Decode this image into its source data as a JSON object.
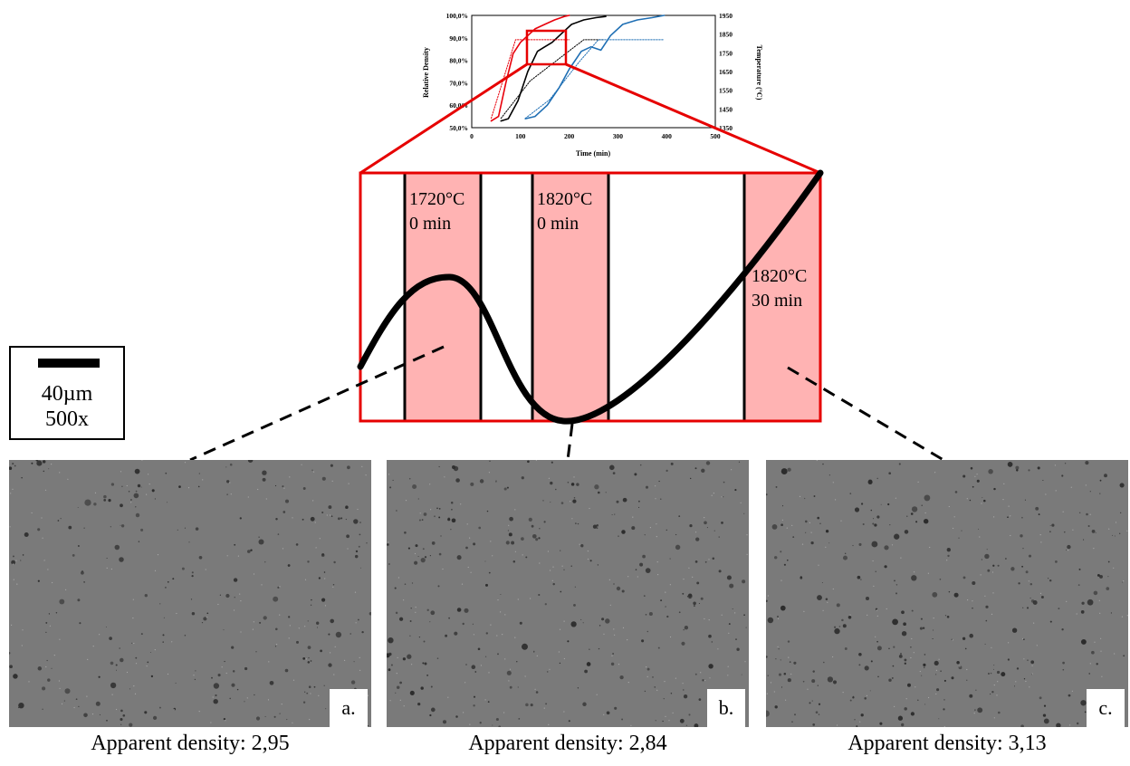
{
  "chart_data": {
    "type": "line",
    "xlabel": "Time (min)",
    "ylabel": "Relative Density",
    "y2label": "Temperature (°C)",
    "xlim": [
      0,
      500
    ],
    "ylim": [
      0.5,
      1.0
    ],
    "y2lim": [
      1350,
      1950
    ],
    "xticks": [
      "0",
      "100",
      "200",
      "300",
      "400",
      "500"
    ],
    "yticks": [
      "50,0%",
      "60,0%",
      "70,0%",
      "80,0%",
      "90,0%",
      "100,0%"
    ],
    "y2ticks": [
      "1350",
      "1450",
      "1550",
      "1650",
      "1750",
      "1850",
      "1950"
    ],
    "grid": false,
    "series": [
      {
        "color": "#e8000b",
        "style": "solid",
        "axis": "left",
        "x": [
          40,
          55,
          70,
          85,
          100,
          115,
          130,
          150,
          170,
          190,
          200
        ],
        "y": [
          0.53,
          0.55,
          0.7,
          0.83,
          0.88,
          0.91,
          0.94,
          0.96,
          0.98,
          0.995,
          1.0
        ]
      },
      {
        "color": "#000000",
        "style": "solid",
        "axis": "left",
        "x": [
          60,
          75,
          95,
          115,
          135,
          150,
          165,
          185,
          205,
          230,
          255,
          275
        ],
        "y": [
          0.53,
          0.54,
          0.62,
          0.75,
          0.84,
          0.86,
          0.88,
          0.92,
          0.96,
          0.98,
          0.99,
          0.995
        ]
      },
      {
        "color": "#1f6fb4",
        "style": "solid",
        "axis": "left",
        "x": [
          110,
          130,
          155,
          180,
          200,
          225,
          245,
          265,
          285,
          310,
          340,
          370,
          395
        ],
        "y": [
          0.54,
          0.55,
          0.6,
          0.68,
          0.76,
          0.84,
          0.86,
          0.845,
          0.91,
          0.96,
          0.98,
          0.99,
          1.0
        ]
      },
      {
        "color": "#e8000b",
        "style": "dotted",
        "axis": "right",
        "x": [
          40,
          90,
          200
        ],
        "y": [
          1400,
          1820,
          1820
        ]
      },
      {
        "color": "#000000",
        "style": "dotted",
        "axis": "right",
        "x": [
          60,
          120,
          180,
          230,
          270
        ],
        "y": [
          1400,
          1600,
          1720,
          1820,
          1820
        ]
      },
      {
        "color": "#1f6fb4",
        "style": "dotted",
        "axis": "right",
        "x": [
          110,
          160,
          220,
          260,
          300,
          395
        ],
        "y": [
          1400,
          1500,
          1700,
          1820,
          1820,
          1820
        ]
      }
    ]
  },
  "zoom_stages": [
    {
      "temp": "1720°C",
      "time": "0 min"
    },
    {
      "temp": "1820°C",
      "time": "0 min"
    },
    {
      "temp": "1820°C",
      "time": "30 min"
    }
  ],
  "scale_bar": {
    "length": "40µm",
    "magnification": "500x"
  },
  "micrographs": [
    {
      "tag": "a.",
      "caption": "Apparent density: 2,95"
    },
    {
      "tag": "b.",
      "caption": "Apparent density: 2,84"
    },
    {
      "tag": "c.",
      "caption": "Apparent density: 3,13"
    }
  ],
  "colors": {
    "zoom_outline": "#e60000",
    "stage_fill": "#ffb3b3",
    "micrograph_bg": "#7a7a7a",
    "pore": "#2c2c2c"
  }
}
